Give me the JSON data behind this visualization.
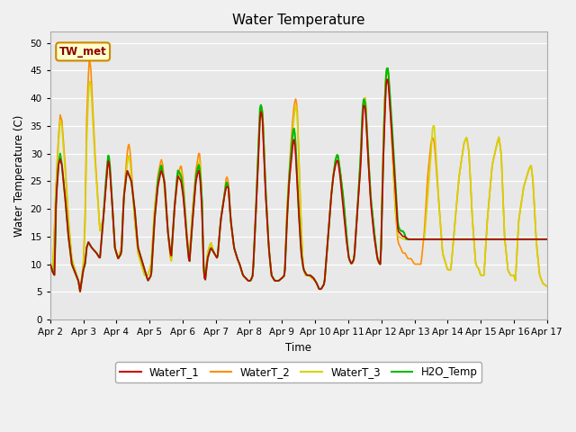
{
  "title": "Water Temperature",
  "ylabel": "Water Temperature (C)",
  "xlabel": "Time",
  "annotation": "TW_met",
  "annotation_color": "#8b0000",
  "annotation_bg": "#ffffcc",
  "annotation_border": "#cc8800",
  "ylim": [
    0,
    52
  ],
  "yticks": [
    0,
    5,
    10,
    15,
    20,
    25,
    30,
    35,
    40,
    45,
    50
  ],
  "bg_color": "#e8e8e8",
  "grid_color": "#ffffff",
  "line_colors_order": [
    "#ff8800",
    "#cccc00",
    "#00cc00",
    "#cc0000"
  ],
  "x_tick_labels": [
    "Apr 2",
    "Apr 3",
    "Apr 4",
    "Apr 5",
    "Apr 6",
    "Apr 7",
    "Apr 8",
    "Apr 9",
    "Apr 10",
    "Apr 11",
    "Apr 12",
    "Apr 13",
    "Apr 14",
    "Apr 15",
    "Apr 16",
    "Apr 17"
  ]
}
